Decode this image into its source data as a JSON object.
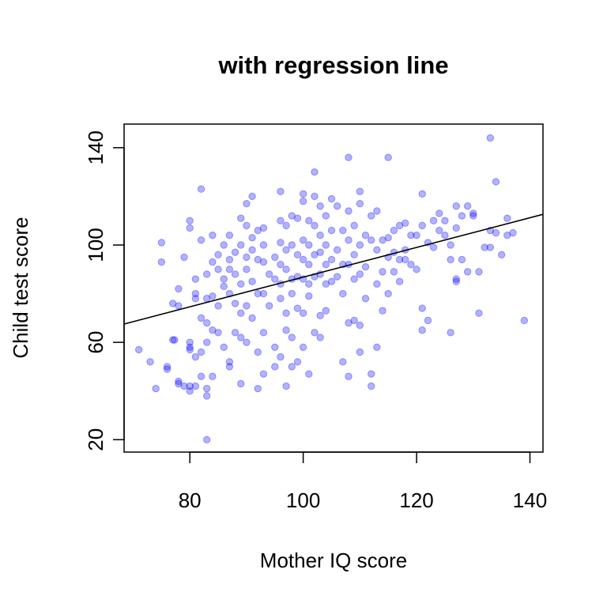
{
  "chart_data": {
    "type": "scatter",
    "title": "with regression line",
    "xlabel": "Mother IQ score",
    "ylabel": "Child test score",
    "xlim": [
      68.4,
      142.3
    ],
    "ylim": [
      14.9,
      149.7
    ],
    "xticks": [
      80,
      100,
      120,
      140
    ],
    "yticks": [
      20,
      60,
      100,
      140
    ],
    "xtick_labels": [
      "80",
      "100",
      "120",
      "140"
    ],
    "ytick_labels": [
      "20",
      "60",
      "100",
      "140"
    ],
    "grid": false,
    "point_color": "#0000ff",
    "point_alpha": 0.3,
    "line_color": "#000000",
    "regression_line": {
      "intercept": 25.8,
      "slope": 0.61
    },
    "points": [
      [
        71,
        57
      ],
      [
        73,
        52
      ],
      [
        74,
        41
      ],
      [
        75,
        101
      ],
      [
        75,
        93
      ],
      [
        76,
        50
      ],
      [
        76,
        49
      ],
      [
        77,
        76
      ],
      [
        77,
        61
      ],
      [
        77.3,
        61
      ],
      [
        78,
        82
      ],
      [
        78,
        44
      ],
      [
        78,
        43
      ],
      [
        78,
        75
      ],
      [
        79,
        42
      ],
      [
        79,
        95
      ],
      [
        80,
        110
      ],
      [
        80,
        107
      ],
      [
        80,
        60
      ],
      [
        80,
        58
      ],
      [
        80,
        57
      ],
      [
        80,
        42
      ],
      [
        80,
        40
      ],
      [
        81,
        80
      ],
      [
        81,
        78
      ],
      [
        81,
        86
      ],
      [
        81,
        42
      ],
      [
        81,
        54
      ],
      [
        82,
        123
      ],
      [
        82,
        102
      ],
      [
        82,
        70
      ],
      [
        82,
        56
      ],
      [
        82,
        46
      ],
      [
        83,
        88
      ],
      [
        83,
        78
      ],
      [
        83,
        68
      ],
      [
        83,
        60
      ],
      [
        83,
        41
      ],
      [
        83,
        38
      ],
      [
        83,
        20
      ],
      [
        84,
        93
      ],
      [
        84,
        79
      ],
      [
        84,
        65
      ],
      [
        84,
        46
      ],
      [
        84,
        104
      ],
      [
        85,
        96
      ],
      [
        85,
        90
      ],
      [
        85,
        75
      ],
      [
        85,
        64
      ],
      [
        86,
        100
      ],
      [
        86,
        86
      ],
      [
        86,
        83
      ],
      [
        86,
        58
      ],
      [
        87,
        104
      ],
      [
        87,
        94
      ],
      [
        87,
        90
      ],
      [
        87,
        80
      ],
      [
        87,
        50
      ],
      [
        87,
        52
      ],
      [
        88,
        97
      ],
      [
        88,
        88
      ],
      [
        88,
        76
      ],
      [
        88,
        64
      ],
      [
        89,
        111
      ],
      [
        89,
        100
      ],
      [
        89,
        84
      ],
      [
        89,
        72
      ],
      [
        89,
        62
      ],
      [
        89,
        43
      ],
      [
        90,
        117
      ],
      [
        90,
        108
      ],
      [
        90,
        95
      ],
      [
        90,
        90
      ],
      [
        90,
        75
      ],
      [
        90,
        60
      ],
      [
        91,
        120
      ],
      [
        91,
        103
      ],
      [
        91,
        98
      ],
      [
        91,
        85
      ],
      [
        91,
        70
      ],
      [
        92,
        106
      ],
      [
        92,
        94
      ],
      [
        92,
        80
      ],
      [
        92,
        56
      ],
      [
        92,
        41
      ],
      [
        93,
        107
      ],
      [
        93,
        100
      ],
      [
        93,
        93
      ],
      [
        93,
        80
      ],
      [
        93,
        64
      ],
      [
        93,
        47
      ],
      [
        94,
        88
      ],
      [
        94,
        75
      ],
      [
        95,
        95
      ],
      [
        95,
        86
      ],
      [
        95,
        58
      ],
      [
        95,
        50
      ],
      [
        96,
        122
      ],
      [
        96,
        110
      ],
      [
        96,
        101
      ],
      [
        96,
        92
      ],
      [
        96,
        84
      ],
      [
        96,
        78
      ],
      [
        96,
        54
      ],
      [
        97,
        108
      ],
      [
        97,
        98
      ],
      [
        97,
        90
      ],
      [
        97,
        72
      ],
      [
        97,
        65
      ],
      [
        97,
        42
      ],
      [
        98,
        112
      ],
      [
        98,
        100
      ],
      [
        98,
        86
      ],
      [
        98,
        80
      ],
      [
        98,
        62
      ],
      [
        98,
        50
      ],
      [
        99,
        111
      ],
      [
        99,
        96
      ],
      [
        99,
        87
      ],
      [
        99,
        74
      ],
      [
        99,
        52
      ],
      [
        100,
        121
      ],
      [
        100,
        118
      ],
      [
        100,
        102
      ],
      [
        100,
        94
      ],
      [
        100,
        86
      ],
      [
        100,
        72
      ],
      [
        100,
        58
      ],
      [
        101,
        110
      ],
      [
        101,
        100
      ],
      [
        101,
        92
      ],
      [
        101,
        84
      ],
      [
        101,
        79
      ],
      [
        101,
        47
      ],
      [
        102,
        130
      ],
      [
        102,
        120
      ],
      [
        102,
        108
      ],
      [
        102,
        96
      ],
      [
        102,
        87
      ],
      [
        102,
        64
      ],
      [
        103,
        116
      ],
      [
        103,
        104
      ],
      [
        103,
        97
      ],
      [
        103,
        88
      ],
      [
        103,
        71
      ],
      [
        103,
        62
      ],
      [
        104,
        112
      ],
      [
        104,
        100
      ],
      [
        104,
        92
      ],
      [
        104,
        84
      ],
      [
        104,
        73
      ],
      [
        105,
        119
      ],
      [
        105,
        106
      ],
      [
        105,
        94
      ],
      [
        105,
        85
      ],
      [
        106,
        116
      ],
      [
        106,
        98
      ],
      [
        106,
        87
      ],
      [
        107,
        106
      ],
      [
        107,
        92
      ],
      [
        107,
        80
      ],
      [
        107,
        52
      ],
      [
        108,
        136
      ],
      [
        108,
        114
      ],
      [
        108,
        102
      ],
      [
        108,
        92
      ],
      [
        108,
        68
      ],
      [
        108,
        46
      ],
      [
        109,
        108
      ],
      [
        109,
        96
      ],
      [
        109,
        86
      ],
      [
        109,
        69
      ],
      [
        110,
        122
      ],
      [
        110,
        117
      ],
      [
        110,
        100
      ],
      [
        110,
        88
      ],
      [
        110,
        67
      ],
      [
        110,
        56
      ],
      [
        111,
        104
      ],
      [
        111,
        91
      ],
      [
        111,
        78
      ],
      [
        112,
        112
      ],
      [
        112,
        102
      ],
      [
        112,
        47
      ],
      [
        112,
        42
      ],
      [
        113,
        114
      ],
      [
        113,
        98
      ],
      [
        113,
        84
      ],
      [
        113,
        58
      ],
      [
        114,
        102
      ],
      [
        114,
        89
      ],
      [
        114,
        73
      ],
      [
        115,
        136
      ],
      [
        115,
        103
      ],
      [
        115,
        95
      ],
      [
        115,
        80
      ],
      [
        116,
        97
      ],
      [
        116,
        89
      ],
      [
        116,
        106
      ],
      [
        117,
        108
      ],
      [
        117,
        94
      ],
      [
        117,
        85
      ],
      [
        118,
        109
      ],
      [
        118,
        98
      ],
      [
        118,
        94
      ],
      [
        119,
        104
      ],
      [
        119,
        92
      ],
      [
        120,
        104
      ],
      [
        120,
        90
      ],
      [
        121,
        121
      ],
      [
        121,
        108
      ],
      [
        121,
        74
      ],
      [
        121,
        65
      ],
      [
        122,
        101
      ],
      [
        122,
        69
      ],
      [
        123,
        99
      ],
      [
        123,
        110
      ],
      [
        124,
        113
      ],
      [
        124,
        106
      ],
      [
        125,
        110
      ],
      [
        125,
        104
      ],
      [
        126,
        100
      ],
      [
        126,
        94
      ],
      [
        126,
        64
      ],
      [
        127,
        116
      ],
      [
        127,
        107
      ],
      [
        127,
        86
      ],
      [
        127,
        85
      ],
      [
        128,
        112
      ],
      [
        128,
        94
      ],
      [
        129,
        116
      ],
      [
        129,
        89
      ],
      [
        130,
        113
      ],
      [
        130,
        112
      ],
      [
        131,
        72
      ],
      [
        131,
        89
      ],
      [
        132,
        99
      ],
      [
        133,
        144
      ],
      [
        133,
        106
      ],
      [
        133,
        99
      ],
      [
        134,
        126
      ],
      [
        134,
        105
      ],
      [
        135,
        96
      ],
      [
        136,
        111
      ],
      [
        136,
        104
      ],
      [
        137,
        105
      ],
      [
        139,
        69
      ]
    ]
  }
}
